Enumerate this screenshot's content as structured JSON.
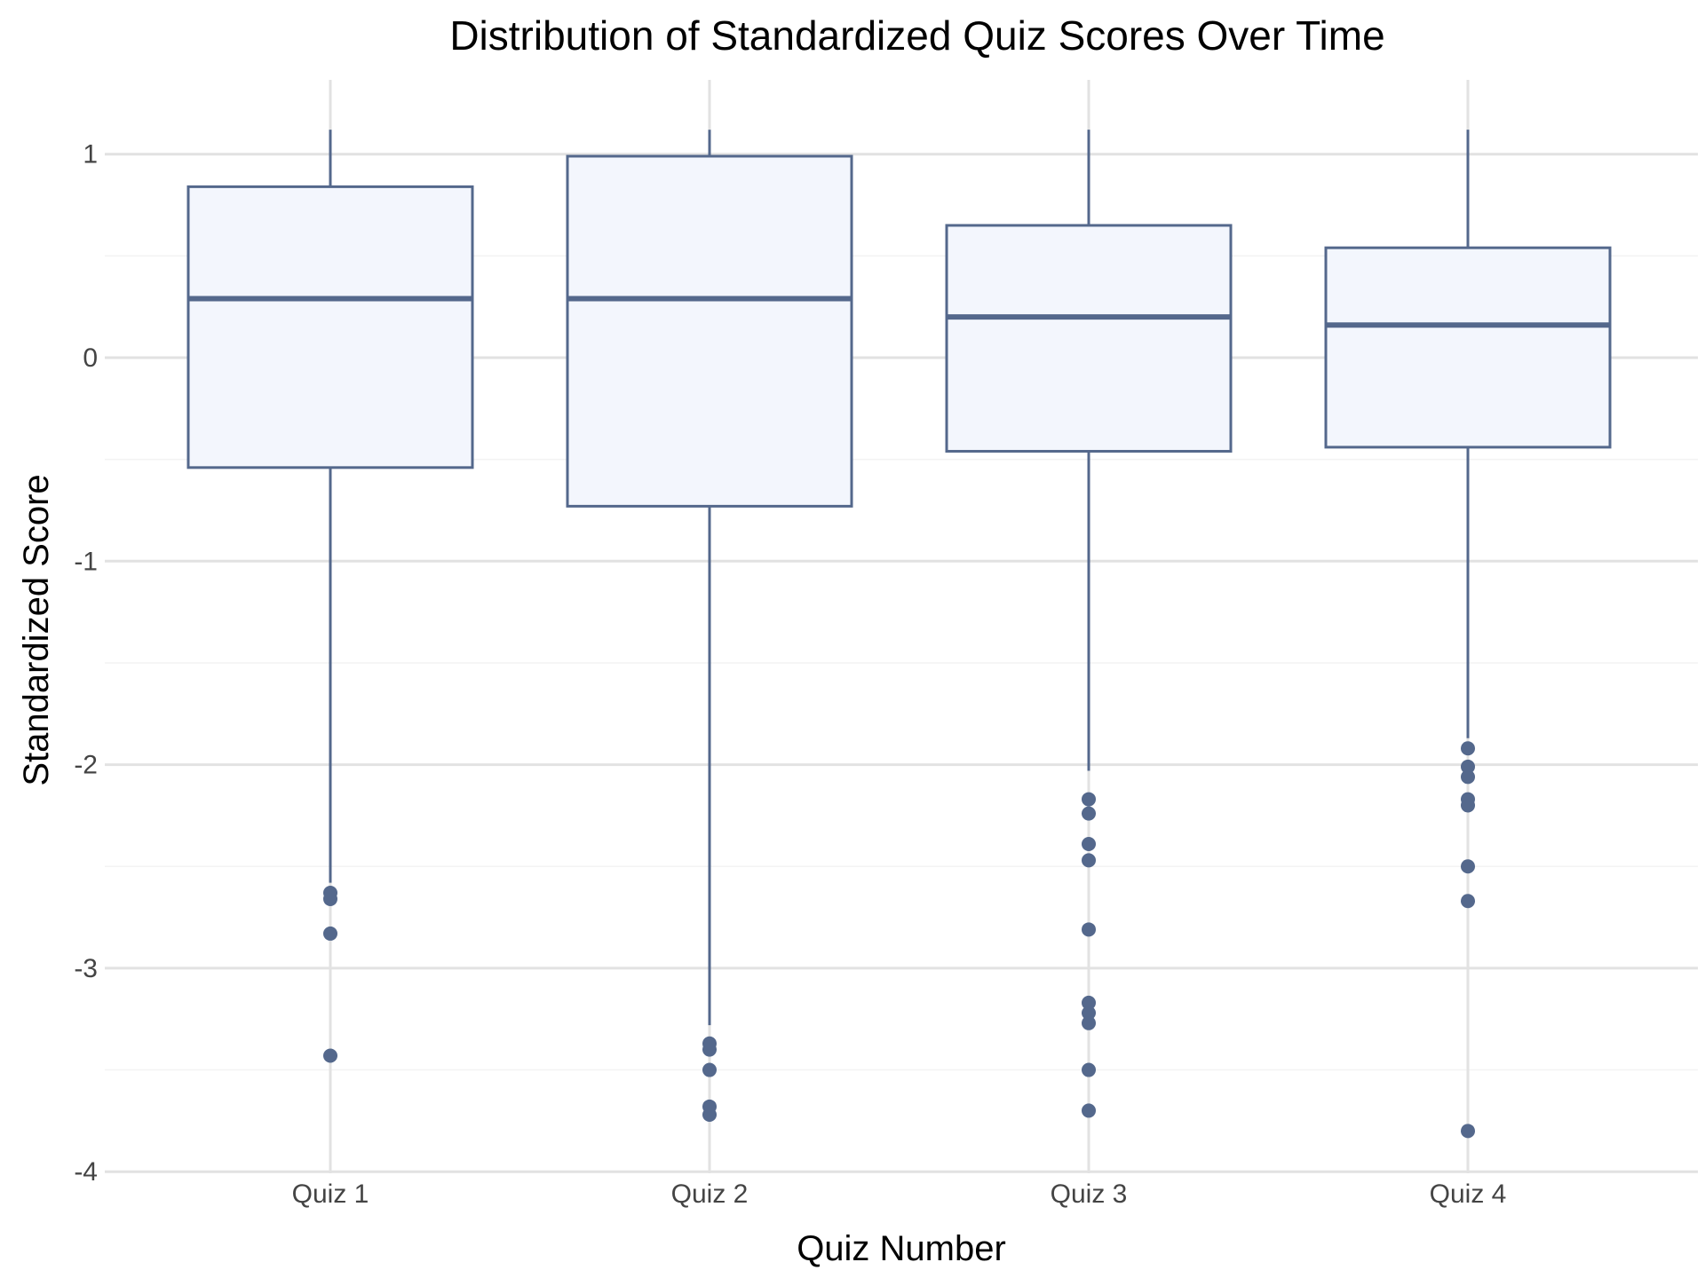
{
  "chart_data": {
    "type": "box",
    "title": "Distribution of Standardized Quiz Scores Over Time",
    "xlabel": "Quiz Number",
    "ylabel": "Standardized Score",
    "categories": [
      "Quiz 1",
      "Quiz 2",
      "Quiz 3",
      "Quiz 4"
    ],
    "ylim": [
      -4.0,
      1.35
    ],
    "yticks": [
      {
        "value": 1,
        "label": "1"
      },
      {
        "value": 0,
        "label": "0"
      },
      {
        "value": -1,
        "label": "-1"
      },
      {
        "value": -2,
        "label": "-2"
      },
      {
        "value": -3,
        "label": "-3"
      },
      {
        "value": -4,
        "label": "-4"
      }
    ],
    "grid": true,
    "legend": "none",
    "boxes": [
      {
        "category": "Quiz 1",
        "whisker_low": -2.58,
        "q1": -0.54,
        "median": 0.29,
        "q3": 0.84,
        "whisker_high": 1.12,
        "outliers": [
          -2.63,
          -2.66,
          -2.83,
          -3.43
        ]
      },
      {
        "category": "Quiz 2",
        "whisker_low": -3.28,
        "q1": -0.73,
        "median": 0.29,
        "q3": 0.99,
        "whisker_high": 1.12,
        "outliers": [
          -3.37,
          -3.4,
          -3.5,
          -3.68,
          -3.72
        ]
      },
      {
        "category": "Quiz 3",
        "whisker_low": -2.03,
        "q1": -0.46,
        "median": 0.2,
        "q3": 0.65,
        "whisker_high": 1.12,
        "outliers": [
          -2.17,
          -2.24,
          -2.39,
          -2.47,
          -2.81,
          -3.17,
          -3.22,
          -3.27,
          -3.5,
          -3.7
        ]
      },
      {
        "category": "Quiz 4",
        "whisker_low": -1.87,
        "q1": -0.44,
        "median": 0.16,
        "q3": 0.54,
        "whisker_high": 1.12,
        "outliers": [
          -1.92,
          -2.01,
          -2.06,
          -2.17,
          -2.2,
          -2.5,
          -2.67,
          -3.8
        ]
      }
    ],
    "colors": {
      "box_fill": "#f3f6fd",
      "box_stroke": "#54688c",
      "grid_major": "#e2e2e2",
      "grid_minor": "#f3f3f3"
    }
  }
}
